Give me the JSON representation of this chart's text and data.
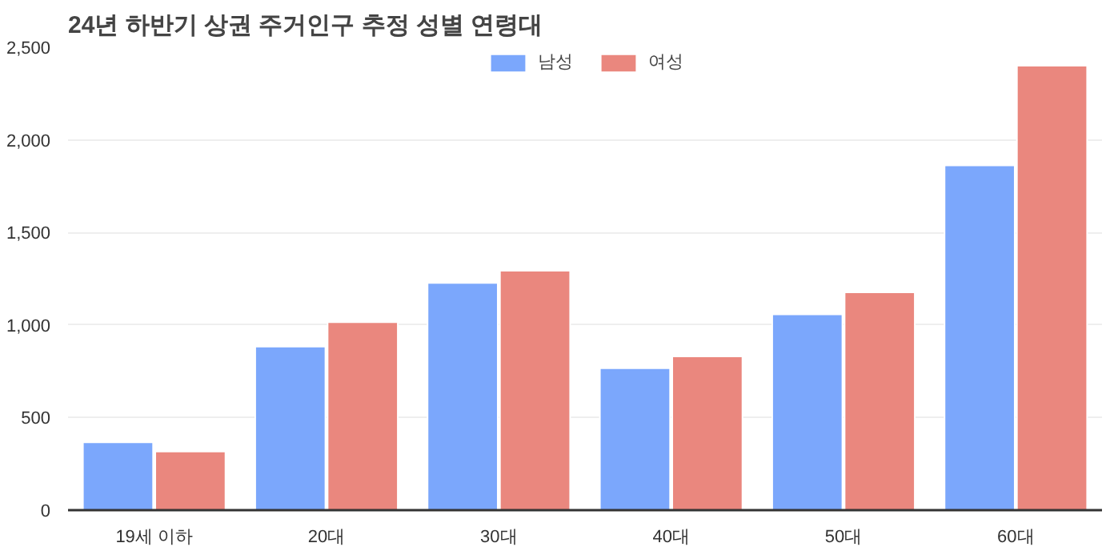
{
  "chart_data": {
    "type": "bar",
    "title": "24년 하반기 상권 주거인구 추정 성별 연령대",
    "categories": [
      "19세 이하",
      "20대",
      "30대",
      "40대",
      "50대",
      "60대"
    ],
    "series": [
      {
        "name": "남성",
        "color": "#7ba7fc",
        "values": [
          367,
          883,
          1227,
          767,
          1058,
          1862
        ]
      },
      {
        "name": "여성",
        "color": "#ea877e",
        "values": [
          317,
          1015,
          1293,
          830,
          1177,
          2401
        ]
      }
    ],
    "ylim": [
      0,
      2500
    ],
    "yticks": [
      {
        "value": 0,
        "label": "0"
      },
      {
        "value": 500,
        "label": "500"
      },
      {
        "value": 1000,
        "label": "1,000"
      },
      {
        "value": 1500,
        "label": "1,500"
      },
      {
        "value": 2000,
        "label": "2,000"
      },
      {
        "value": 2500,
        "label": "2,500"
      }
    ],
    "grid": "y",
    "legend": "top"
  }
}
